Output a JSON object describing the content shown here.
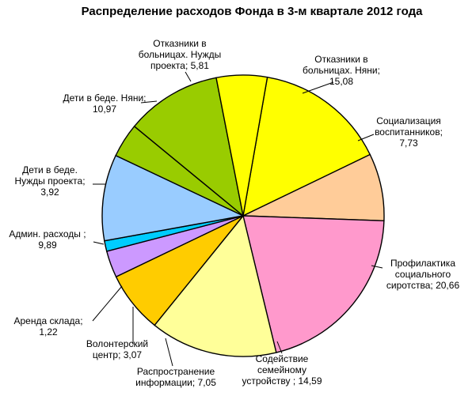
{
  "chart_data": {
    "type": "pie",
    "title": "Распределение расходов Фонда в 3-м квартале 2012 года",
    "slices": [
      {
        "label_lines": [
          "Отказники  в",
          "больницах.  Няни;",
          "15,08"
        ],
        "value": 15.08,
        "color": "#ffff00"
      },
      {
        "label_lines": [
          "Социализация",
          "воспитанников;",
          "7,73"
        ],
        "value": 7.73,
        "color": "#ffcc99"
      },
      {
        "label_lines": [
          "Профилактика",
          "социального",
          "сиротства;  20,66"
        ],
        "value": 20.66,
        "color": "#ff99cc"
      },
      {
        "label_lines": [
          "Содействие",
          "семейному",
          "устройству ;  14,59"
        ],
        "value": 14.59,
        "color": "#ffff99"
      },
      {
        "label_lines": [
          "Распространение",
          "информации;  7,05"
        ],
        "value": 7.05,
        "color": "#ffcc00"
      },
      {
        "label_lines": [
          "Волонтерский",
          "центр;  3,07"
        ],
        "value": 3.07,
        "color": "#cc99ff"
      },
      {
        "label_lines": [
          "Аренда склада;",
          "1,22"
        ],
        "value": 1.22,
        "color": "#00ccff"
      },
      {
        "label_lines": [
          "Админ. расходы  ;",
          "9,89"
        ],
        "value": 9.89,
        "color": "#99ccff"
      },
      {
        "label_lines": [
          "Дети  в беде.",
          "Нужды проекта;",
          "3,92"
        ],
        "value": 3.92,
        "color": "#99cc00"
      },
      {
        "label_lines": [
          "Дети  в беде. Няни;",
          "10,97"
        ],
        "value": 10.97,
        "color": "#99cc00"
      },
      {
        "label_lines": [
          "Отказники  в",
          "больницах.  Нужды",
          "проекта;  5,81"
        ],
        "value": 5.81,
        "color": "#ffff00"
      }
    ]
  }
}
